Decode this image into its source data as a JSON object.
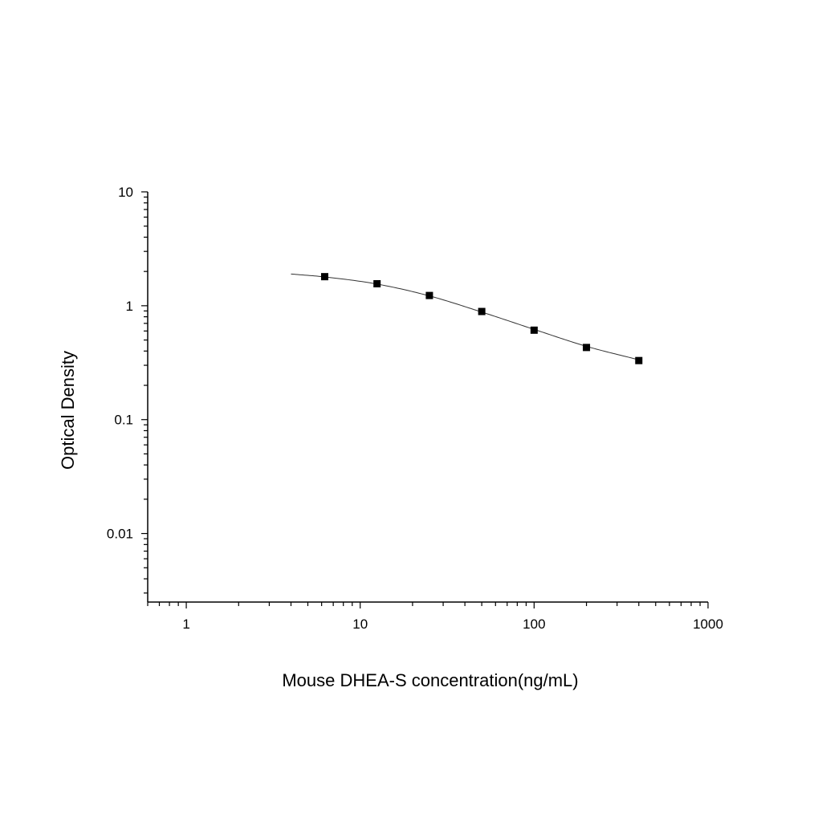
{
  "chart_data": {
    "type": "scatter",
    "xlabel": "Mouse DHEA-S concentration(ng/mL)",
    "ylabel": "Optical Density",
    "x_scale": "log",
    "y_scale": "log",
    "xlim": [
      0.6,
      1000
    ],
    "ylim": [
      0.0025,
      10
    ],
    "x_ticks": [
      {
        "value": 1,
        "label": "1"
      },
      {
        "value": 10,
        "label": "10"
      },
      {
        "value": 100,
        "label": "100"
      },
      {
        "value": 1000,
        "label": "1000"
      }
    ],
    "y_ticks": [
      {
        "value": 10,
        "label": "10"
      },
      {
        "value": 1,
        "label": "1"
      },
      {
        "value": 0.1,
        "label": "0.1"
      },
      {
        "value": 0.01,
        "label": "0.01"
      }
    ],
    "grid": false,
    "legend": "none",
    "series": [
      {
        "marker": "square",
        "color": "#000000",
        "x": [
          6.25,
          12.5,
          25,
          50,
          100,
          200,
          400
        ],
        "y": [
          1.8,
          1.56,
          1.23,
          0.89,
          0.61,
          0.43,
          0.33
        ]
      }
    ],
    "fit_curve": {
      "color": "#333333",
      "x": [
        4,
        6.25,
        12.5,
        25,
        50,
        100,
        200,
        400
      ],
      "y": [
        1.9,
        1.79,
        1.55,
        1.22,
        0.88,
        0.62,
        0.44,
        0.335
      ]
    }
  }
}
